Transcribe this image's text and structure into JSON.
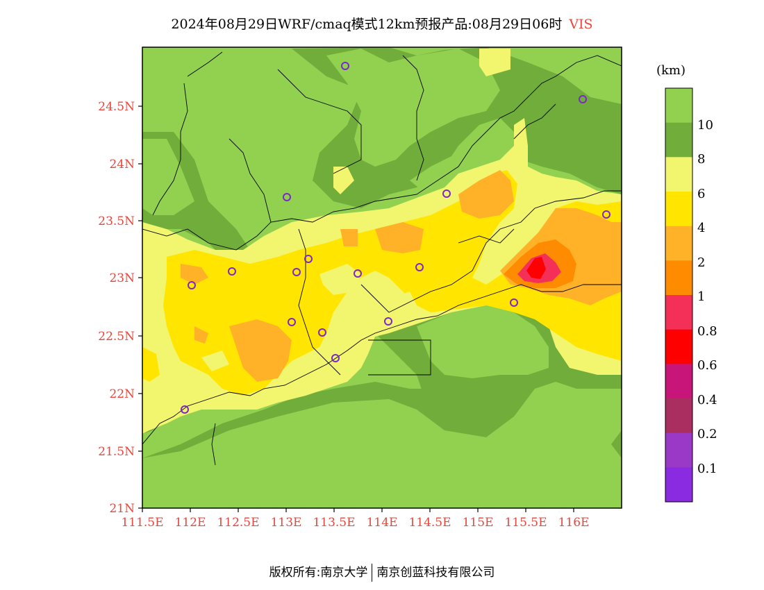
{
  "title": {
    "main": "2024年08月29日WRF/cmaq模式12km预报产品:08月29日06时",
    "variable": "VIS"
  },
  "map": {
    "lat_ticks": [
      "24.5N",
      "24N",
      "23.5N",
      "23N",
      "22.5N",
      "22N",
      "21.5N",
      "21N"
    ],
    "lon_ticks": [
      "111.5E",
      "112E",
      "112.5E",
      "113E",
      "113.5E",
      "114E",
      "114.5E",
      "115E",
      "115.5E",
      "116E"
    ],
    "colors": {
      "vis_gt10": "#92d050",
      "vis_8_10": "#70ad3a",
      "vis_6_8": "#f2f56e",
      "vis_4_6": "#ffe500",
      "vis_2_4": "#ffb128",
      "vis_1_2": "#ff8c00",
      "vis_08_1": "#f53058",
      "vis_06_08": "#ff0000",
      "marker": "#7a28c8"
    }
  },
  "colorbar": {
    "unit": "(km)",
    "labels": [
      "10",
      "8",
      "6",
      "4",
      "2",
      "1",
      "0.8",
      "0.6",
      "0.4",
      "0.2",
      "0.1"
    ],
    "colors": [
      "#92d050",
      "#70ad3a",
      "#f2f56e",
      "#ffe500",
      "#ffb128",
      "#ff8c00",
      "#f53058",
      "#ff0000",
      "#c8157a",
      "#aa2e5f",
      "#9a38c8",
      "#8a2be2"
    ]
  },
  "footer": {
    "left": "版权所有:南京大学",
    "right": "南京创蓝科技有限公司"
  }
}
